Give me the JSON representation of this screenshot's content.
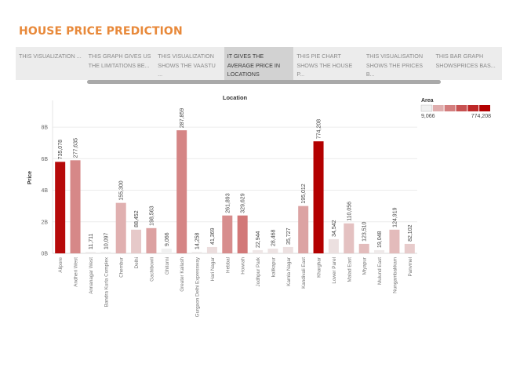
{
  "page": {
    "title": "HOUSE PRICE PREDICTION"
  },
  "tabs": [
    {
      "label": "THIS VISUALIZATION ...",
      "active": false
    },
    {
      "label": "THIS GRAPH GIVES US THE LIMITATIONS BE...",
      "active": false
    },
    {
      "label": "THIS VISUALIZATION SHOWS THE VAASTU ...",
      "active": false
    },
    {
      "label": "IT GIVES THE AVERAGE PRICE IN LOCATIONS",
      "active": true
    },
    {
      "label": "THIS PIE CHART SHOWS THE HOUSE P...",
      "active": false
    },
    {
      "label": "THIS VISUALISATION SHOWS THE PRICES B...",
      "active": false
    },
    {
      "label": "THIS BAR GRAPH SHOWSPRICES BAS...",
      "active": false
    }
  ],
  "colors": {
    "title": "#e8893a",
    "low": "#f0f0f0",
    "high": "#b30000",
    "gridline": "#ececec"
  },
  "chart_data": {
    "type": "bar",
    "title": "Location",
    "xlabel": "",
    "ylabel": "Price",
    "ylim": [
      0,
      8.6
    ],
    "y_unit": "billions",
    "yticks": [
      0,
      2,
      4,
      6,
      8
    ],
    "ytick_labels": [
      "0B",
      "2B",
      "4B",
      "6B",
      "8B"
    ],
    "grid": true,
    "categories": [
      "Alipore",
      "Andheri West",
      "Annanagar West",
      "Bandra Kurla Complex",
      "Chembur",
      "Delhi",
      "Gachibowli",
      "Ghitorni",
      "Greater Kailash",
      "Gurgaon Delhi Expressway",
      "Hari Nagar",
      "Hebbal",
      "Howrah",
      "Jodhpur Park",
      "kalikapur",
      "Kamla Nagar",
      "Kandivali East",
      "Kharghar",
      "Lower Parel",
      "Malad East",
      "Miyapur",
      "Mulund East",
      "Nungambakkam",
      "Panvmel"
    ],
    "values": [
      5.8,
      5.9,
      0.1,
      0.1,
      3.2,
      1.5,
      1.6,
      0.3,
      7.8,
      0.1,
      0.4,
      2.4,
      2.4,
      0.2,
      0.3,
      0.4,
      3.0,
      7.1,
      0.9,
      1.9,
      0.6,
      0.2,
      1.5,
      0.6
    ],
    "bar_labels": [
      "735,078",
      "277,635",
      "11,711",
      "10,097",
      "155,300",
      "88,452",
      "198,563",
      "9,066",
      "287,859",
      "14,258",
      "41,369",
      "261,893",
      "329,629",
      "22,944",
      "28,468",
      "35,727",
      "195,012",
      "774,208",
      "34,542",
      "110,056",
      "123,510",
      "19,048",
      "124,919",
      "82,102"
    ],
    "color_values": [
      735078,
      277635,
      11711,
      10097,
      155300,
      88452,
      198563,
      9066,
      287859,
      14258,
      41369,
      261893,
      329629,
      22944,
      28468,
      35727,
      195012,
      774208,
      34542,
      110056,
      123510,
      19048,
      124919,
      82102
    ],
    "legend": {
      "title": "Area",
      "min_label": "9,066",
      "max_label": "774,208",
      "min": 9066,
      "max": 774208,
      "placement": "top-right"
    }
  }
}
